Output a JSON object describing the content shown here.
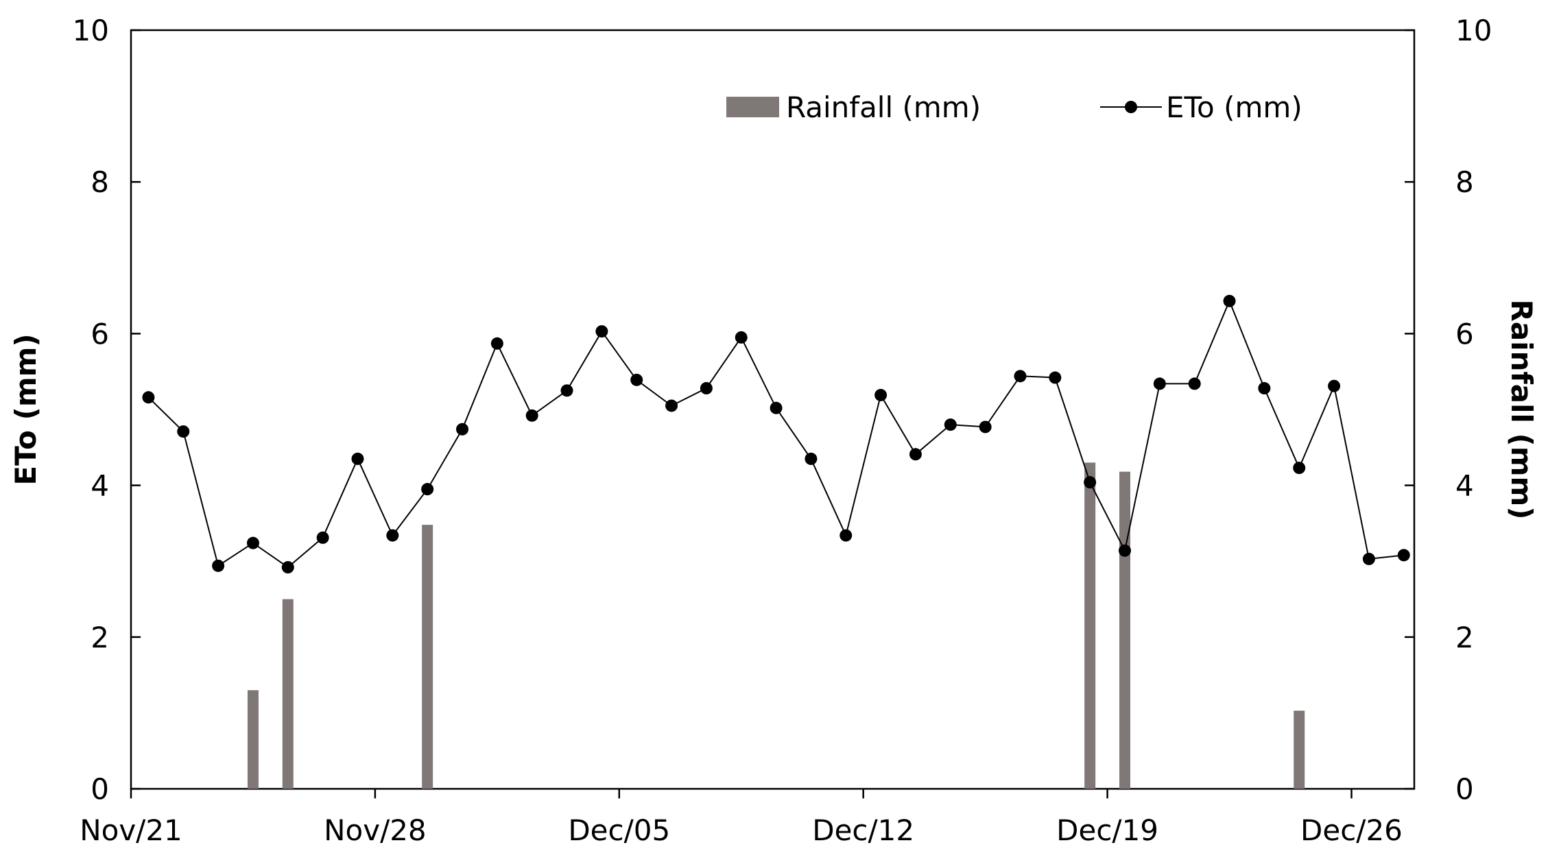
{
  "chart_data": {
    "type": "bar+line",
    "x_start": "Nov/21",
    "x_tick_labels": [
      "Nov/21",
      "Nov/28",
      "Dec/05",
      "Dec/12",
      "Dec/19",
      "Dec/26"
    ],
    "x_tick_days": [
      0,
      7,
      14,
      21,
      28,
      35
    ],
    "xlim": [
      0,
      36.8
    ],
    "left_axis": {
      "label": "ETo (mm)",
      "ylim": [
        0,
        10
      ],
      "ticks": [
        0,
        2,
        4,
        6,
        8,
        10
      ]
    },
    "right_axis": {
      "label": "Rainfall (mm)",
      "ylim": [
        0,
        10
      ],
      "ticks": [
        0,
        2,
        4,
        6,
        8,
        10
      ]
    },
    "series": [
      {
        "name": "Rainfall (mm)",
        "type": "bar",
        "axis": "right",
        "color": "#7f7877",
        "days": [
          3.5,
          4.5,
          8.5,
          27.5,
          28.5,
          33.5
        ],
        "values": [
          1.3,
          2.5,
          3.48,
          4.3,
          4.18,
          1.03
        ]
      },
      {
        "name": "ETo (mm)",
        "type": "line",
        "axis": "left",
        "color": "#000000",
        "days": [
          0.5,
          1.5,
          2.5,
          3.5,
          4.5,
          5.5,
          6.5,
          7.5,
          8.5,
          9.5,
          10.5,
          11.5,
          12.5,
          13.5,
          14.5,
          15.5,
          16.5,
          17.5,
          18.5,
          19.5,
          20.5,
          21.5,
          22.5,
          23.5,
          24.5,
          25.5,
          26.5,
          27.5,
          28.5,
          29.5,
          30.5,
          31.5,
          32.5,
          33.5,
          34.5,
          35.5,
          36.5
        ],
        "values": [
          5.16,
          4.71,
          2.94,
          3.24,
          2.92,
          3.31,
          4.35,
          3.34,
          3.95,
          4.74,
          5.87,
          4.92,
          5.25,
          6.03,
          5.39,
          5.05,
          5.28,
          5.95,
          5.02,
          4.35,
          3.34,
          5.19,
          4.41,
          4.8,
          4.77,
          5.44,
          5.42,
          4.04,
          3.14,
          5.34,
          5.34,
          6.43,
          5.28,
          4.23,
          5.31,
          3.03,
          3.08
        ]
      }
    ],
    "legend": {
      "position": "top-right",
      "entries": [
        "Rainfall (mm)",
        "ETo (mm)"
      ]
    },
    "grid": false
  }
}
